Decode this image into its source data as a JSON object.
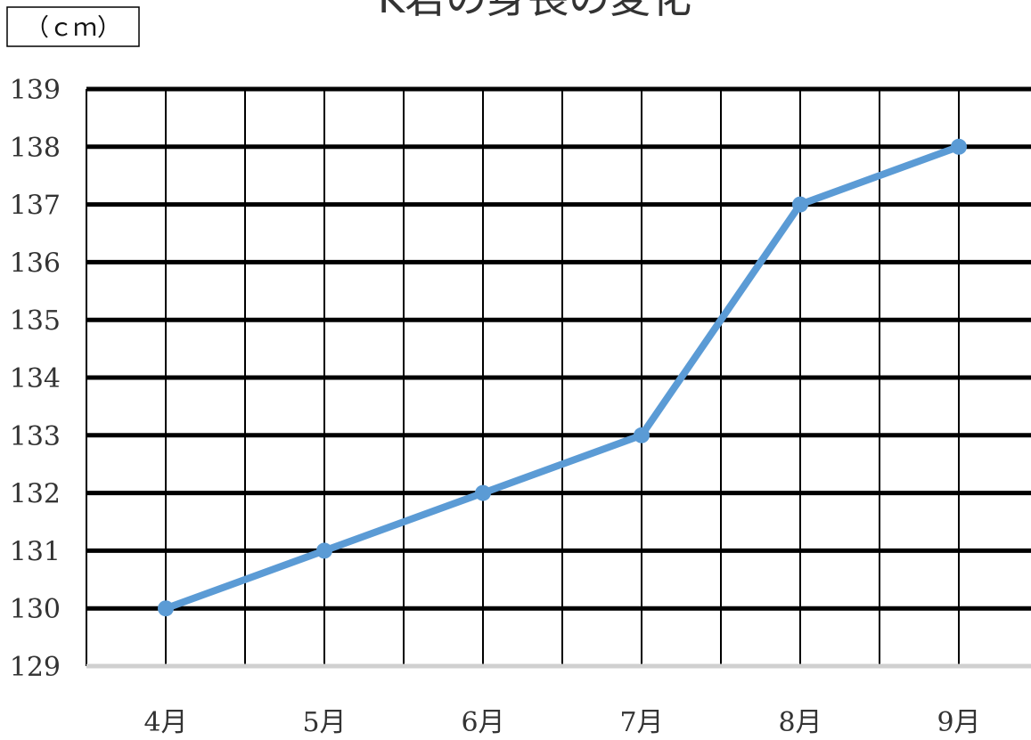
{
  "chart_data": {
    "type": "line",
    "title": "K君の身長の変化",
    "unit_label": "（ｃｍ）",
    "categories": [
      "4月",
      "5月",
      "6月",
      "7月",
      "8月",
      "9月"
    ],
    "series": [
      {
        "values": [
          130,
          131,
          132,
          133,
          137,
          138
        ]
      }
    ],
    "ylim": [
      129,
      139
    ],
    "yticks": [
      "129",
      "130",
      "131",
      "132",
      "133",
      "134",
      "135",
      "136",
      "137",
      "138",
      "139"
    ],
    "grid": true,
    "line_color": "#5B9BD5",
    "legend": "none"
  }
}
